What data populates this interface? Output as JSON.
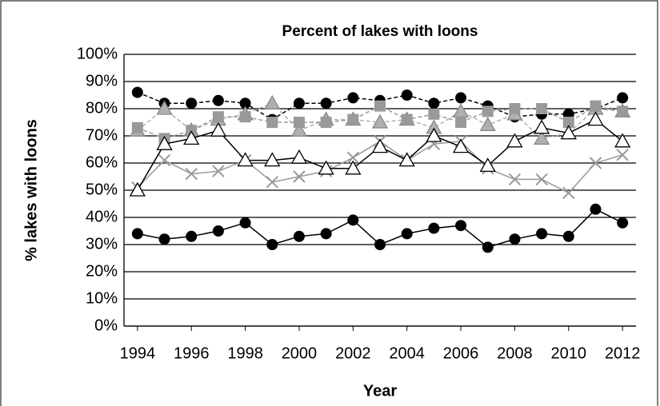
{
  "chart_data": {
    "type": "line",
    "title": "Percent of lakes with loons",
    "xlabel": "Year",
    "ylabel": "% lakes with loons",
    "x": [
      1994,
      1995,
      1996,
      1997,
      1998,
      1999,
      2000,
      2001,
      2002,
      2003,
      2004,
      2005,
      2006,
      2007,
      2008,
      2009,
      2010,
      2011,
      2012
    ],
    "xlim": [
      1993.5,
      2012.5
    ],
    "xticks": [
      1994,
      1996,
      1998,
      2000,
      2002,
      2004,
      2006,
      2008,
      2010,
      2012
    ],
    "ylim": [
      0,
      100
    ],
    "yticks": [
      {
        "value": 0,
        "label": "0%"
      },
      {
        "value": 10,
        "label": "10%"
      },
      {
        "value": 20,
        "label": "20%"
      },
      {
        "value": 30,
        "label": "30%"
      },
      {
        "value": 40,
        "label": "40%"
      },
      {
        "value": 50,
        "label": "50%"
      },
      {
        "value": 60,
        "label": "60%"
      },
      {
        "value": 70,
        "label": "70%"
      },
      {
        "value": 80,
        "label": "80%"
      },
      {
        "value": 90,
        "label": "90%"
      },
      {
        "value": 100,
        "label": "100%"
      }
    ],
    "grid": true,
    "series": [
      {
        "color": "#000000",
        "marker": "circle",
        "dash": true,
        "values": [
          86,
          82,
          82,
          83,
          82,
          76,
          82,
          82,
          84,
          83,
          85,
          82,
          84,
          81,
          77,
          78,
          78,
          80,
          84
        ]
      },
      {
        "color": "#000000",
        "marker": "circle",
        "dash": false,
        "values": [
          34,
          32,
          33,
          35,
          38,
          30,
          33,
          34,
          39,
          30,
          34,
          36,
          37,
          29,
          32,
          34,
          33,
          43,
          38
        ]
      },
      {
        "color": "#999999",
        "marker": "x",
        "dash": false,
        "values": [
          51,
          61,
          56,
          57,
          61,
          53,
          55,
          57,
          62,
          68,
          61,
          67,
          68,
          58,
          54,
          54,
          49,
          60,
          63
        ]
      },
      {
        "color": "#b0b0b0",
        "marker": "triangle-filled",
        "dash": true,
        "values": [
          72,
          80,
          72,
          76,
          78,
          82,
          72,
          76,
          76,
          75,
          76,
          73,
          79,
          74,
          78,
          69,
          71,
          80,
          79
        ]
      },
      {
        "color": "#999999",
        "marker": "square",
        "dash": true,
        "values": [
          73,
          69,
          72,
          77,
          77,
          75,
          75,
          75,
          76,
          81,
          76,
          78,
          75,
          79,
          80,
          80,
          75,
          81,
          79
        ]
      },
      {
        "color": "#000000",
        "marker": "triangle-open",
        "dash": false,
        "values": [
          50,
          67,
          69,
          72,
          61,
          61,
          62,
          58,
          58,
          66,
          61,
          70,
          66,
          59,
          68,
          73,
          71,
          76,
          68
        ]
      }
    ]
  }
}
